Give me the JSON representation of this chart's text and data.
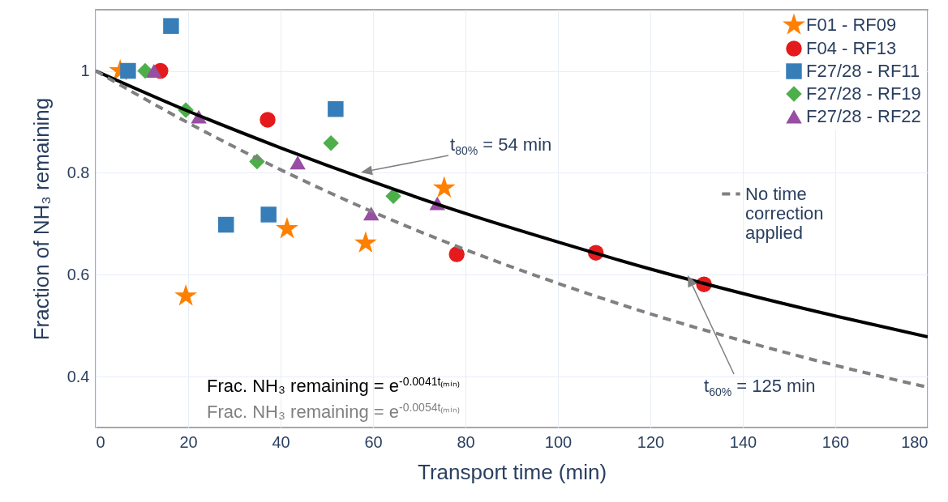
{
  "chart_data": {
    "type": "scatter",
    "xlabel": "Transport time (min)",
    "ylabel": "Fraction of NH₃ remaining",
    "xlim": [
      0,
      180
    ],
    "xticks": [
      0,
      20,
      40,
      60,
      80,
      100,
      120,
      140,
      160,
      180
    ],
    "ylim": [
      0.3,
      1.12
    ],
    "yticks": [
      0.4,
      0.6,
      0.8,
      1
    ],
    "grid": true,
    "legend": "top right",
    "series": [
      {
        "name": "F01 - RF09",
        "color": "#ff7f00",
        "marker": "star",
        "x": [
          5.3,
          19.5,
          41.4,
          58.4,
          75.4
        ],
        "values": [
          1.0,
          0.558,
          0.69,
          0.662,
          0.77
        ]
      },
      {
        "name": "F04 - RF13",
        "color": "#e41a1c",
        "marker": "circle",
        "x": [
          14,
          37.2,
          78.1,
          108.2,
          131.6
        ],
        "values": [
          1.0,
          0.904,
          0.64,
          0.643,
          0.581
        ]
      },
      {
        "name": "F27/28 - RF11",
        "color": "#377eb8",
        "marker": "square",
        "x": [
          7,
          16.3,
          51.9,
          28.2,
          37.4
        ],
        "values": [
          1.0,
          1.088,
          0.925,
          0.698,
          0.718
        ]
      },
      {
        "name": "F27/28 - RF19",
        "color": "#4daf4a",
        "marker": "diamond",
        "x": [
          10.7,
          19.5,
          34.9,
          50.9,
          64.4
        ],
        "values": [
          1.0,
          0.923,
          0.822,
          0.858,
          0.754
        ]
      },
      {
        "name": "F27/28 - RF22",
        "color": "#984ea3",
        "marker": "triangle",
        "x": [
          12.6,
          22.3,
          43.7,
          59.6,
          73.9
        ],
        "values": [
          1.0,
          0.91,
          0.82,
          0.72,
          0.74
        ]
      },
      {
        "type": "line",
        "color": "#000000",
        "line_style": "solid",
        "x": [
          0,
          20,
          40,
          60,
          80,
          100,
          120,
          140,
          160,
          180
        ],
        "values": [
          1,
          0.921,
          0.849,
          0.782,
          0.72,
          0.664,
          0.611,
          0.563,
          0.519,
          0.478
        ]
      },
      {
        "type": "line",
        "name": "No time correction applied",
        "color": "#808080",
        "line_style": "dashed",
        "x": [
          0,
          20,
          40,
          60,
          80,
          100,
          120,
          140,
          160,
          180
        ],
        "values": [
          1,
          0.898,
          0.806,
          0.723,
          0.649,
          0.583,
          0.523,
          0.47,
          0.422,
          0.379
        ]
      }
    ],
    "annotations": [
      "t$_{80%}$ = 54 min",
      "t$_{60%}$ = 125 min",
      "Frac. NH₃ remaining  = e$^{-0.0041t₍ₘᵢₙ₎}$",
      "Frac. NH₃ remaining  = e$^{-0.0054t₍ₘᵢₙ₎}$"
    ]
  }
}
